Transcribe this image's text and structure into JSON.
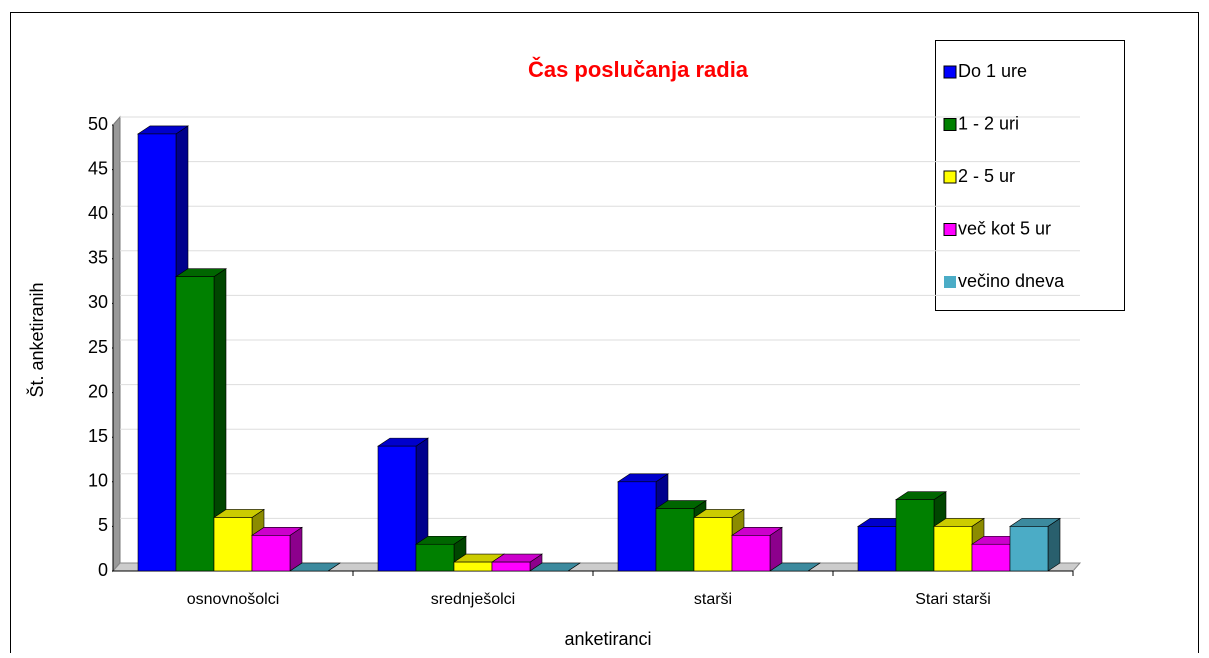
{
  "chart_data": {
    "type": "bar3d",
    "title": "Čas poslučanja radia",
    "x_label": "anketiranci",
    "y_label": "Št. anketiranih",
    "categories": [
      "osnovnošolci",
      "srednješolci",
      "starši",
      "Stari starši"
    ],
    "series": [
      {
        "name": "Do 1 ure",
        "color": "#0000ff",
        "values": [
          49,
          14,
          10,
          5
        ]
      },
      {
        "name": "1 - 2 uri",
        "color": "#008000",
        "values": [
          33,
          3,
          7,
          8
        ]
      },
      {
        "name": "2 - 5 ur",
        "color": "#ffff00",
        "values": [
          6,
          1,
          6,
          5
        ]
      },
      {
        "name": "več kot 5 ur",
        "color": "#ff00ff",
        "values": [
          4,
          1,
          4,
          3
        ]
      },
      {
        "name": "večino dneva",
        "color": "#4bacc6",
        "values": [
          0,
          0,
          0,
          5
        ]
      }
    ],
    "ylim": [
      0,
      50
    ],
    "yticks": [
      0,
      5,
      10,
      15,
      20,
      25,
      30,
      35,
      40,
      45,
      50
    ],
    "grid": true
  }
}
